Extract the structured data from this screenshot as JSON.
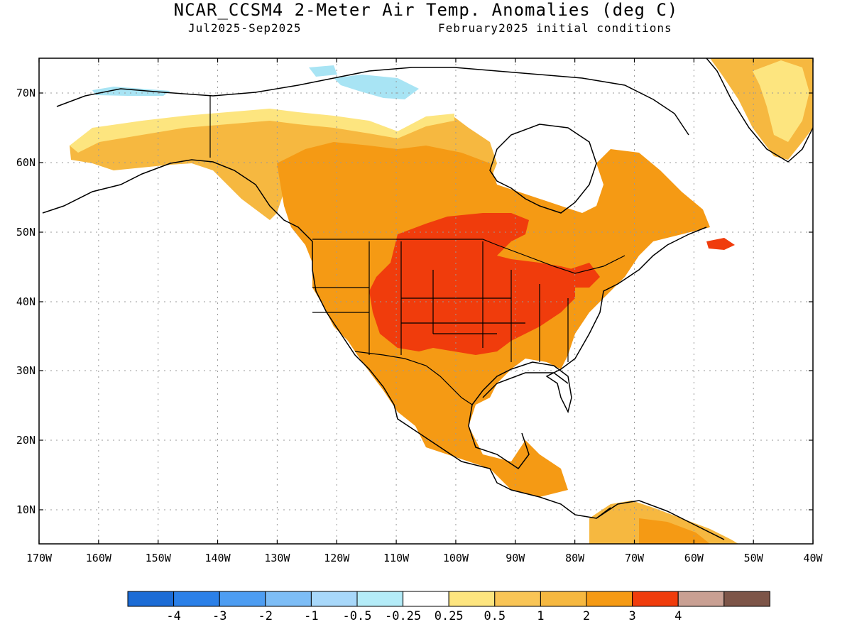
{
  "title": "NCAR_CCSM4 2-Meter Air Temp. Anomalies (deg C)",
  "subtitle_left": "Jul2025-Sep2025",
  "subtitle_right": "February2025 initial conditions",
  "map": {
    "lat_labels": [
      "70N",
      "60N",
      "50N",
      "40N",
      "30N",
      "20N",
      "10N"
    ],
    "lon_labels": [
      "170W",
      "160W",
      "150W",
      "140W",
      "130W",
      "120W",
      "110W",
      "100W",
      "90W",
      "80W",
      "70W",
      "60W",
      "50W",
      "40W"
    ]
  },
  "colors": {
    "light_blue": "#a8e4f4",
    "yellow": "#fde57f",
    "light_orange": "#f6b840",
    "orange": "#f59a14",
    "red": "#f03c0c"
  },
  "legend": {
    "colors": [
      "#1c6cd6",
      "#2b80e8",
      "#4d9df2",
      "#7dbdf6",
      "#a8d8fa",
      "#b4ecf8",
      "#ffffff",
      "#fde57f",
      "#f9c556",
      "#f6b840",
      "#f59a14",
      "#f03c0c",
      "#c9a093",
      "#7d5548"
    ],
    "labels": [
      "-4",
      "-3",
      "-2",
      "-1",
      "-0.5",
      "-0.25",
      "0.25",
      "0.5",
      "1",
      "2",
      "3",
      "4"
    ]
  }
}
